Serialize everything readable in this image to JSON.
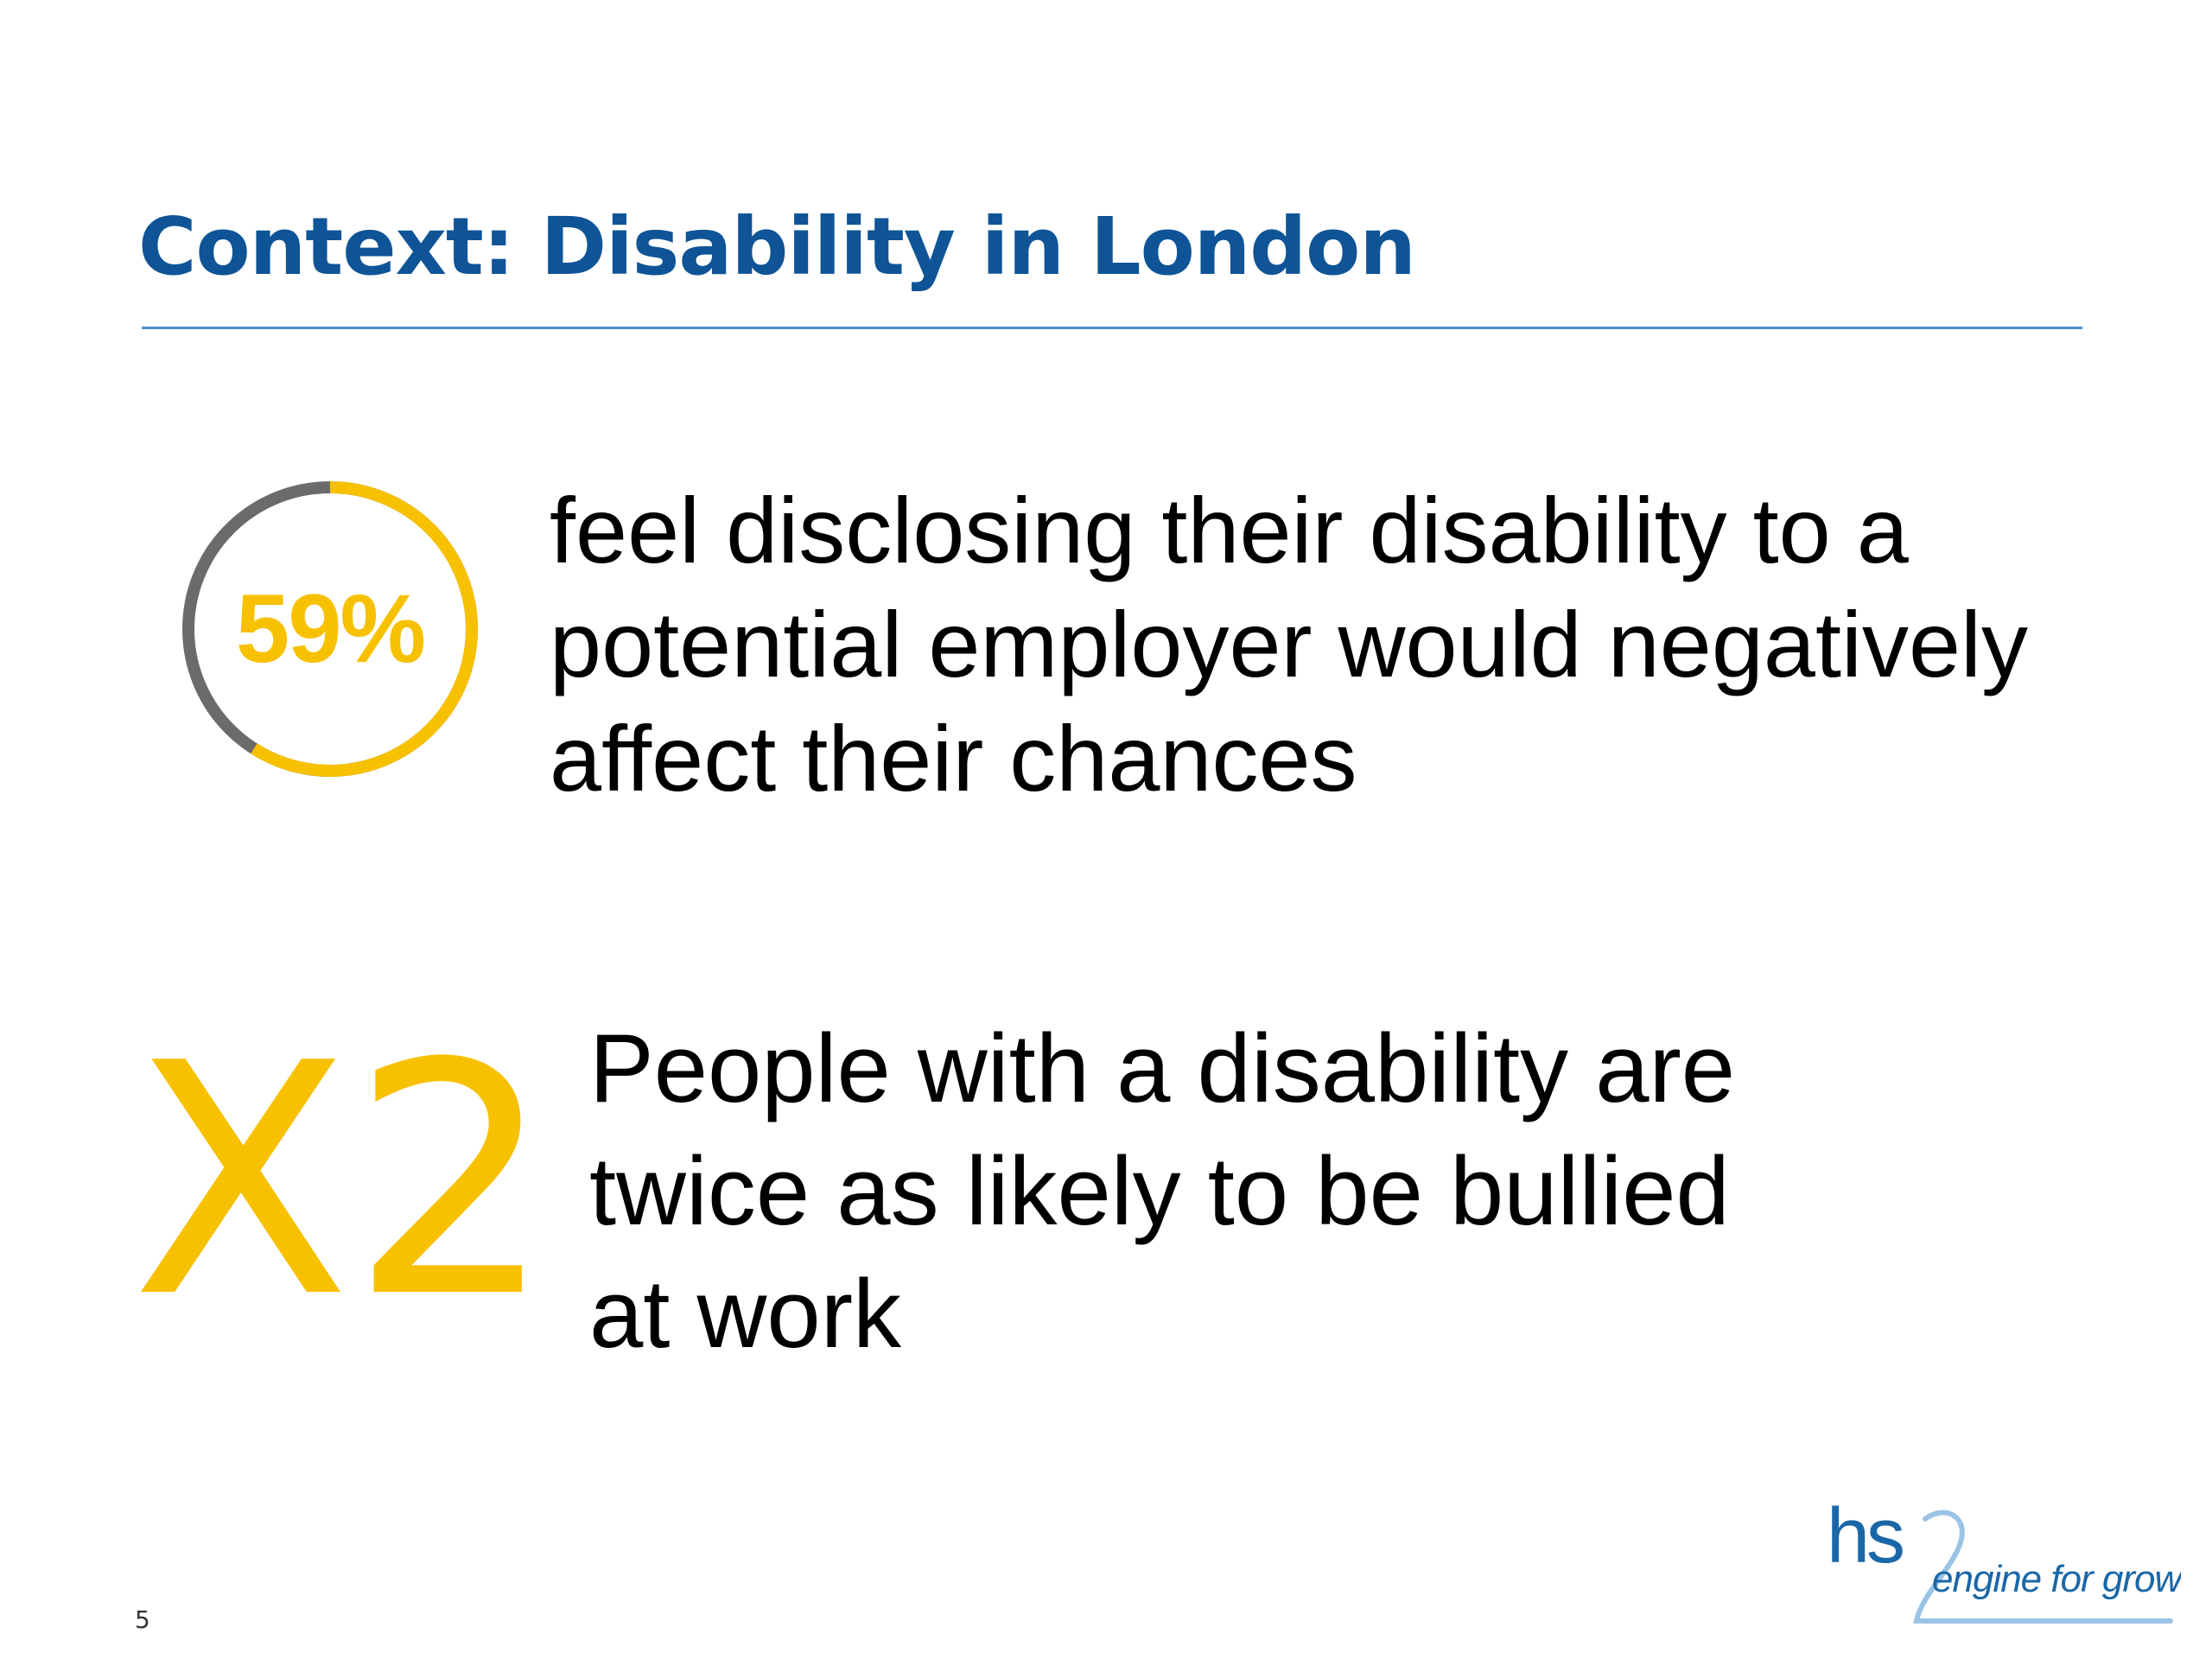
{
  "slide": {
    "title": "Context: Disability in London",
    "number": "5"
  },
  "stat_1": {
    "value_label": "59%",
    "percent": 59,
    "lines": [
      "feel disclosing their disability to a",
      "potential employer would negatively",
      "affect their chances"
    ]
  },
  "stat_2": {
    "multiplier": "X2",
    "lines": [
      "People with a disability are",
      "twice as likely to be bullied",
      "at work"
    ]
  },
  "logo": {
    "mark": "hs2",
    "tagline": "engine for growth"
  },
  "colors": {
    "title": "#0E5496",
    "accent_yellow": "#F8C100",
    "ring_remainder": "#6B6B6B",
    "rule": "#4E8FCB",
    "logo_blue": "#1A67A8",
    "logo_light": "#9BC3E6"
  }
}
